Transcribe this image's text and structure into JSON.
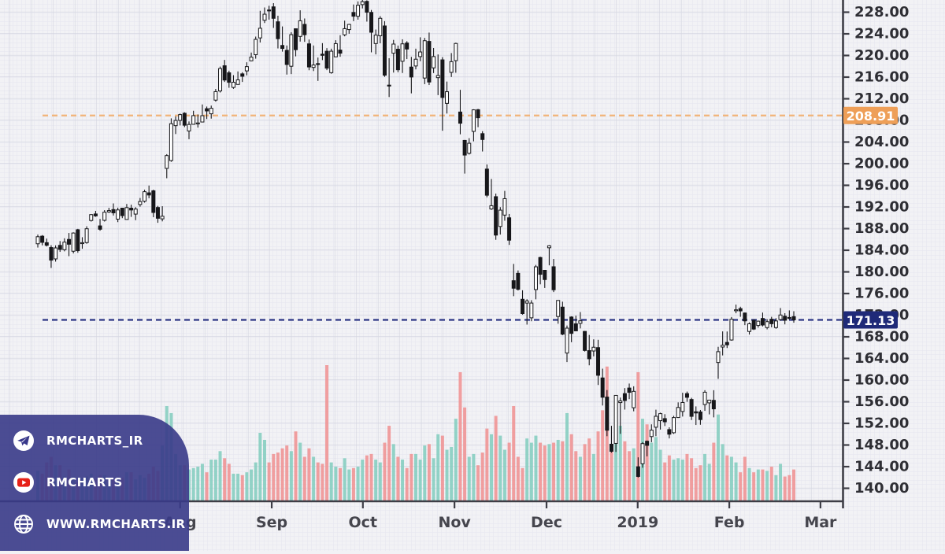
{
  "branding": {
    "items": [
      {
        "icon": "telegram-icon",
        "label": "RMCHARTS_IR"
      },
      {
        "icon": "youtube-icon",
        "label": "RMCHARTS"
      },
      {
        "icon": "globe-icon",
        "label": "WWW.RMCHARTS.IR"
      }
    ],
    "panel_color": "#38388a"
  },
  "chart_data": {
    "type": "candlestick",
    "description": "Daily OHLC candlestick chart with volume, Jun 2018 - Feb 2019 (AAPL-style), price axis right 140.00-228.00 step 4.00",
    "y_axis": {
      "max": 228,
      "min": 140,
      "step": 4,
      "ticks": [
        "228.00",
        "224.00",
        "220.00",
        "216.00",
        "212.00",
        "208.00",
        "204.00",
        "200.00",
        "196.00",
        "192.00",
        "188.00",
        "184.00",
        "180.00",
        "176.00",
        "172.00",
        "168.00",
        "164.00",
        "160.00",
        "156.00",
        "152.00",
        "148.00",
        "144.00",
        "140.00"
      ]
    },
    "x_axis": {
      "ticks": [
        {
          "label": "Aug",
          "i": 32.0
        },
        {
          "label": "Sep",
          "i": 52.6
        },
        {
          "label": "Oct",
          "i": 73.1
        },
        {
          "label": "Nov",
          "i": 93.7
        },
        {
          "label": "Dec",
          "i": 114.4
        },
        {
          "label": "2019",
          "i": 134.9
        },
        {
          "label": "Feb",
          "i": 155.5
        },
        {
          "label": "Mar",
          "i": 176.0
        }
      ]
    },
    "price_lines": [
      {
        "label": "208.91",
        "value": 208.91,
        "badge_color": "#ee9f58",
        "line_color": "#f2b478",
        "text_color": "#ffffff"
      },
      {
        "label": "171.13",
        "value": 171.13,
        "badge_color": "#1f2a78",
        "line_color": "#2c3585",
        "text_color": "#ffffff"
      }
    ],
    "volume_max_m": 96,
    "colors": {
      "bg": "#f2f2f5",
      "grid_fine": "#e4e4ee",
      "grid_major": "#d3d4e0",
      "axis": "#3e3e46",
      "tick_label": "#2e2e34",
      "month_label": "#45454d",
      "candle_stroke": "#17171a",
      "up_fill": "#ffffff",
      "down_fill": "#17171a",
      "vol_up": "#85cec0",
      "vol_down": "#f09394"
    },
    "columns": [
      "open",
      "high",
      "low",
      "close",
      "volume_m"
    ],
    "candles": [
      [
        185.2,
        186.9,
        184.5,
        186.5,
        21
      ],
      [
        186.6,
        186.8,
        184.9,
        185.46,
        19
      ],
      [
        185.4,
        186.15,
        184.7,
        184.92,
        27
      ],
      [
        184.5,
        184.92,
        180.73,
        182.17,
        31
      ],
      [
        182.4,
        184.9,
        181.9,
        184.43,
        25
      ],
      [
        184.9,
        185.7,
        183.7,
        184.16,
        25
      ],
      [
        184.1,
        186.21,
        183.8,
        185.5,
        17
      ],
      [
        186.0,
        187.19,
        182.91,
        185.11,
        22
      ],
      [
        183.82,
        187.3,
        183.42,
        187.18,
        17
      ],
      [
        187.79,
        187.95,
        183.54,
        183.92,
        13
      ],
      [
        185.26,
        186.41,
        184.28,
        185.4,
        16
      ],
      [
        185.42,
        188.43,
        185.2,
        187.97,
        17
      ],
      [
        189.5,
        190.68,
        189.3,
        190.58,
        19
      ],
      [
        190.71,
        191.28,
        190.18,
        190.35,
        15
      ],
      [
        188.5,
        189.78,
        187.61,
        187.88,
        18
      ],
      [
        189.53,
        191.41,
        189.31,
        191.03,
        18
      ],
      [
        191.08,
        191.84,
        190.9,
        191.33,
        12
      ],
      [
        191.52,
        192.65,
        190.42,
        190.91,
        15
      ],
      [
        189.75,
        191.87,
        189.2,
        191.45,
        15
      ],
      [
        191.78,
        191.8,
        189.93,
        190.4,
        16
      ],
      [
        189.69,
        192.55,
        189.69,
        191.88,
        20
      ],
      [
        191.78,
        192.43,
        190.17,
        191.44,
        20
      ],
      [
        190.68,
        191.96,
        189.56,
        191.61,
        15
      ],
      [
        192.45,
        193.66,
        192.05,
        193.0,
        18
      ],
      [
        193.06,
        195.19,
        192.81,
        194.82,
        16
      ],
      [
        194.61,
        195.96,
        193.61,
        194.21,
        19
      ],
      [
        194.99,
        195.19,
        190.1,
        190.98,
        24
      ],
      [
        191.9,
        192.2,
        189.07,
        189.91,
        21
      ],
      [
        189.8,
        192.14,
        189.34,
        190.29,
        39
      ],
      [
        199.13,
        201.76,
        197.31,
        201.5,
        67
      ],
      [
        200.58,
        208.38,
        200.35,
        207.39,
        62
      ],
      [
        207.03,
        208.74,
        205.48,
        207.99,
        33
      ],
      [
        208.0,
        209.25,
        207.07,
        209.07,
        25
      ],
      [
        209.32,
        209.5,
        206.76,
        207.11,
        25
      ],
      [
        206.05,
        207.81,
        204.52,
        207.25,
        22
      ],
      [
        207.28,
        209.78,
        207.2,
        208.88,
        23
      ],
      [
        207.36,
        209.1,
        206.67,
        207.53,
        24
      ],
      [
        207.7,
        210.95,
        207.7,
        208.87,
        26
      ],
      [
        210.16,
        210.56,
        208.26,
        209.75,
        20
      ],
      [
        209.22,
        210.74,
        208.33,
        210.24,
        29
      ],
      [
        211.75,
        213.81,
        211.47,
        213.32,
        29
      ],
      [
        213.44,
        217.95,
        213.16,
        217.58,
        35
      ],
      [
        218.1,
        219.18,
        215.11,
        215.46,
        30
      ],
      [
        216.8,
        217.19,
        214.03,
        215.04,
        26
      ],
      [
        214.1,
        216.36,
        213.84,
        215.05,
        19
      ],
      [
        214.65,
        217.05,
        214.6,
        215.49,
        19
      ],
      [
        216.6,
        216.9,
        215.11,
        216.16,
        18
      ],
      [
        217.15,
        218.74,
        216.33,
        217.94,
        20
      ],
      [
        219.01,
        220.54,
        218.92,
        219.7,
        22
      ],
      [
        220.15,
        223.49,
        219.41,
        222.98,
        27
      ],
      [
        223.25,
        228.26,
        222.4,
        225.03,
        48
      ],
      [
        226.51,
        228.87,
        226.0,
        227.63,
        43
      ],
      [
        228.41,
        229.18,
        226.63,
        228.36,
        27
      ],
      [
        228.99,
        229.67,
        225.1,
        226.87,
        33
      ],
      [
        226.23,
        227.35,
        221.3,
        223.1,
        34
      ],
      [
        221.85,
        225.37,
        220.71,
        221.3,
        37
      ],
      [
        220.95,
        221.85,
        216.47,
        218.33,
        39
      ],
      [
        218.01,
        224.3,
        216.56,
        223.85,
        35
      ],
      [
        224.94,
        225.0,
        219.84,
        221.07,
        49
      ],
      [
        223.52,
        228.35,
        222.57,
        226.41,
        41
      ],
      [
        225.75,
        226.84,
        222.52,
        223.84,
        31
      ],
      [
        222.15,
        222.95,
        217.27,
        217.88,
        37
      ],
      [
        217.79,
        221.85,
        217.12,
        218.24,
        31
      ],
      [
        218.5,
        219.62,
        215.3,
        218.37,
        27
      ],
      [
        220.24,
        222.28,
        219.15,
        220.03,
        26
      ],
      [
        220.78,
        221.36,
        217.29,
        217.66,
        96
      ],
      [
        216.82,
        221.26,
        216.63,
        220.79,
        27
      ],
      [
        219.75,
        222.82,
        219.7,
        222.19,
        24
      ],
      [
        221.0,
        223.75,
        219.76,
        220.42,
        23
      ],
      [
        223.82,
        226.44,
        223.54,
        224.95,
        30
      ],
      [
        224.79,
        225.84,
        224.02,
        225.74,
        22
      ],
      [
        227.95,
        229.42,
        226.35,
        227.26,
        23
      ],
      [
        227.25,
        230.0,
        226.62,
        229.28,
        24
      ],
      [
        229.4,
        230.44,
        228.7,
        229.95,
        29
      ],
      [
        230.0,
        230.2,
        226.26,
        227.99,
        32
      ],
      [
        227.96,
        228.41,
        220.58,
        224.29,
        33
      ],
      [
        222.21,
        224.8,
        220.2,
        223.77,
        29
      ],
      [
        223.64,
        227.27,
        222.25,
        226.87,
        27
      ],
      [
        225.46,
        226.35,
        216.05,
        216.36,
        41
      ],
      [
        214.52,
        219.5,
        212.32,
        214.45,
        53
      ],
      [
        220.42,
        222.88,
        216.84,
        222.11,
        40
      ],
      [
        221.16,
        221.83,
        216.9,
        217.36,
        31
      ],
      [
        218.93,
        222.99,
        216.76,
        222.15,
        29
      ],
      [
        222.3,
        222.64,
        219.34,
        221.19,
        23
      ],
      [
        217.86,
        219.74,
        213.0,
        216.02,
        33
      ],
      [
        218.06,
        221.26,
        217.43,
        219.31,
        33
      ],
      [
        219.79,
        223.36,
        218.94,
        220.65,
        29
      ],
      [
        215.83,
        223.25,
        214.7,
        222.73,
        39
      ],
      [
        222.6,
        224.23,
        214.54,
        215.09,
        40
      ],
      [
        217.71,
        221.38,
        216.75,
        219.8,
        30
      ],
      [
        215.9,
        220.19,
        212.67,
        216.3,
        47
      ],
      [
        219.19,
        219.69,
        206.09,
        212.24,
        46
      ],
      [
        211.15,
        215.18,
        209.27,
        213.3,
        36
      ],
      [
        216.88,
        220.45,
        216.02,
        218.86,
        38
      ],
      [
        219.05,
        222.36,
        216.81,
        222.22,
        58
      ],
      [
        209.55,
        213.65,
        205.43,
        207.48,
        91
      ],
      [
        204.3,
        204.39,
        198.17,
        201.59,
        66
      ],
      [
        201.92,
        204.72,
        201.69,
        203.77,
        31
      ],
      [
        205.97,
        210.06,
        204.13,
        209.95,
        33
      ],
      [
        209.98,
        210.12,
        206.75,
        208.49,
        25
      ],
      [
        205.55,
        206.01,
        202.25,
        204.47,
        34
      ],
      [
        199.0,
        199.85,
        193.79,
        194.17,
        51
      ],
      [
        191.63,
        197.18,
        191.45,
        192.23,
        47
      ],
      [
        193.9,
        194.48,
        185.93,
        186.8,
        60
      ],
      [
        188.39,
        191.97,
        186.9,
        191.41,
        46
      ],
      [
        190.5,
        194.97,
        189.46,
        193.53,
        36
      ],
      [
        190.0,
        190.7,
        184.99,
        185.86,
        41
      ],
      [
        178.37,
        181.47,
        175.51,
        176.98,
        67
      ],
      [
        179.73,
        180.27,
        176.55,
        176.78,
        31
      ],
      [
        174.94,
        176.6,
        172.1,
        172.29,
        23
      ],
      [
        174.24,
        174.95,
        170.26,
        174.62,
        44
      ],
      [
        171.51,
        174.77,
        170.88,
        174.24,
        41
      ],
      [
        176.73,
        181.29,
        174.93,
        180.94,
        46
      ],
      [
        182.66,
        182.8,
        177.7,
        179.55,
        41
      ],
      [
        180.29,
        180.33,
        177.03,
        178.58,
        39
      ],
      [
        184.46,
        184.94,
        181.21,
        184.82,
        40
      ],
      [
        180.95,
        182.39,
        176.27,
        176.69,
        41
      ],
      [
        171.76,
        174.78,
        170.42,
        174.72,
        43
      ],
      [
        173.49,
        174.49,
        168.3,
        168.49,
        42
      ],
      [
        165.0,
        170.09,
        163.33,
        169.6,
        62
      ],
      [
        171.66,
        171.79,
        167.0,
        168.63,
        47
      ],
      [
        170.4,
        171.92,
        169.02,
        169.1,
        35
      ],
      [
        170.49,
        172.57,
        169.55,
        170.95,
        31
      ],
      [
        169.0,
        169.08,
        165.28,
        165.48,
        40
      ],
      [
        165.45,
        168.35,
        162.73,
        163.94,
        44
      ],
      [
        165.38,
        167.53,
        164.39,
        166.07,
        33
      ],
      [
        166.0,
        167.45,
        159.09,
        160.89,
        49
      ],
      [
        160.4,
        162.11,
        155.3,
        156.83,
        64
      ],
      [
        156.86,
        158.16,
        149.63,
        150.73,
        95
      ],
      [
        148.15,
        151.55,
        146.59,
        146.83,
        37
      ],
      [
        148.3,
        157.23,
        146.72,
        157.17,
        58
      ],
      [
        155.84,
        156.77,
        150.07,
        156.15,
        53
      ],
      [
        157.5,
        158.52,
        154.55,
        156.23,
        42
      ],
      [
        158.53,
        159.36,
        156.48,
        157.74,
        35
      ],
      [
        154.89,
        158.85,
        154.23,
        157.92,
        37
      ],
      [
        143.98,
        145.72,
        142.0,
        142.19,
        91
      ],
      [
        144.53,
        148.55,
        143.8,
        148.26,
        58
      ],
      [
        148.7,
        148.83,
        145.9,
        147.93,
        54
      ],
      [
        149.56,
        151.82,
        148.52,
        150.75,
        41
      ],
      [
        151.29,
        154.53,
        149.63,
        153.31,
        45
      ],
      [
        152.5,
        153.97,
        150.86,
        153.8,
        36
      ],
      [
        152.88,
        153.7,
        151.51,
        152.29,
        27
      ],
      [
        150.85,
        151.27,
        149.22,
        150.0,
        32
      ],
      [
        150.27,
        153.39,
        150.05,
        153.07,
        29
      ],
      [
        153.08,
        155.88,
        153.0,
        154.94,
        30
      ],
      [
        154.2,
        157.66,
        153.26,
        155.86,
        29
      ],
      [
        157.5,
        157.88,
        155.98,
        156.82,
        33
      ],
      [
        156.41,
        156.73,
        152.62,
        153.3,
        30
      ],
      [
        154.15,
        155.14,
        151.7,
        153.92,
        23
      ],
      [
        154.11,
        154.48,
        151.74,
        152.7,
        25
      ],
      [
        155.48,
        158.13,
        154.32,
        157.76,
        33
      ],
      [
        155.79,
        156.33,
        153.66,
        156.3,
        26
      ],
      [
        156.25,
        158.13,
        153.11,
        154.68,
        41
      ],
      [
        163.25,
        166.15,
        160.23,
        165.25,
        61
      ],
      [
        166.11,
        169.0,
        164.56,
        166.44,
        40
      ],
      [
        166.96,
        168.98,
        165.93,
        166.52,
        32
      ],
      [
        167.41,
        171.66,
        167.28,
        171.25,
        31
      ],
      [
        172.86,
        173.95,
        172.35,
        172.99,
        27
      ],
      [
        173.21,
        173.56,
        171.7,
        172.79,
        20
      ],
      [
        172.4,
        172.48,
        170.16,
        170.94,
        31
      ],
      [
        168.99,
        170.66,
        168.42,
        170.41,
        23
      ],
      [
        171.05,
        171.21,
        169.25,
        169.43,
        20
      ],
      [
        170.1,
        171.0,
        169.7,
        170.89,
        22
      ],
      [
        171.39,
        172.48,
        169.92,
        170.18,
        22
      ],
      [
        169.71,
        171.26,
        169.38,
        170.8,
        21
      ],
      [
        171.25,
        171.7,
        169.75,
        170.42,
        24
      ],
      [
        169.71,
        171.44,
        169.49,
        170.93,
        18
      ],
      [
        171.19,
        173.32,
        170.99,
        172.03,
        26
      ],
      [
        171.8,
        172.37,
        170.3,
        171.06,
        17
      ],
      [
        171.58,
        172.88,
        171.18,
        171.5,
        18
      ],
      [
        171.73,
        172.73,
        170.6,
        171.13,
        22
      ]
    ]
  }
}
